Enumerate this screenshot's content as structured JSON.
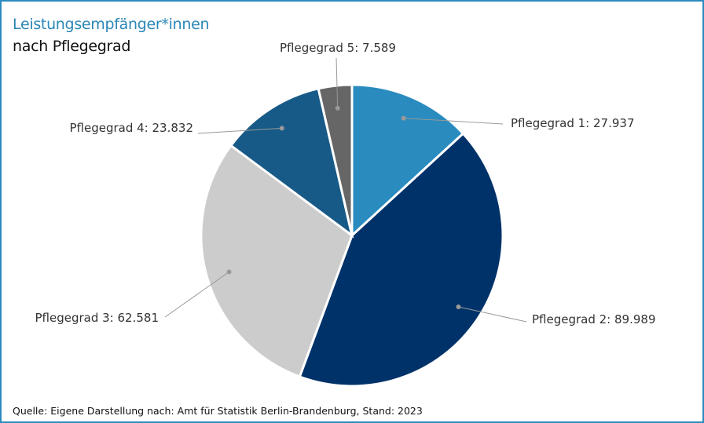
{
  "header": {
    "title": "Leistungsempfänger*innen",
    "subtitle": "nach Pflegegrad"
  },
  "source": "Quelle: Eigene Darstellung nach: Amt für Statistik Berlin-Brandenburg, Stand: 2023",
  "colors": {
    "border": "#2e8bc0",
    "title": "#2a86b6"
  },
  "chart_data": {
    "type": "pie",
    "start": "top, clockwise",
    "slices": [
      {
        "name": "Pflegegrad 1",
        "value": 27937,
        "label": "Pflegegrad 1: 27.937",
        "color": "#2a8bbf"
      },
      {
        "name": "Pflegegrad 2",
        "value": 89989,
        "label": "Pflegegrad 2: 89.989",
        "color": "#00326a"
      },
      {
        "name": "Pflegegrad 3",
        "value": 62581,
        "label": "Pflegegrad 3: 62.581",
        "color": "#cccccc"
      },
      {
        "name": "Pflegegrad 4",
        "value": 23832,
        "label": "Pflegegrad 4: 23.832",
        "color": "#175a87"
      },
      {
        "name": "Pflegegrad 5",
        "value": 7589,
        "label": "Pflegegrad 5: 7.589",
        "color": "#666666"
      }
    ]
  }
}
